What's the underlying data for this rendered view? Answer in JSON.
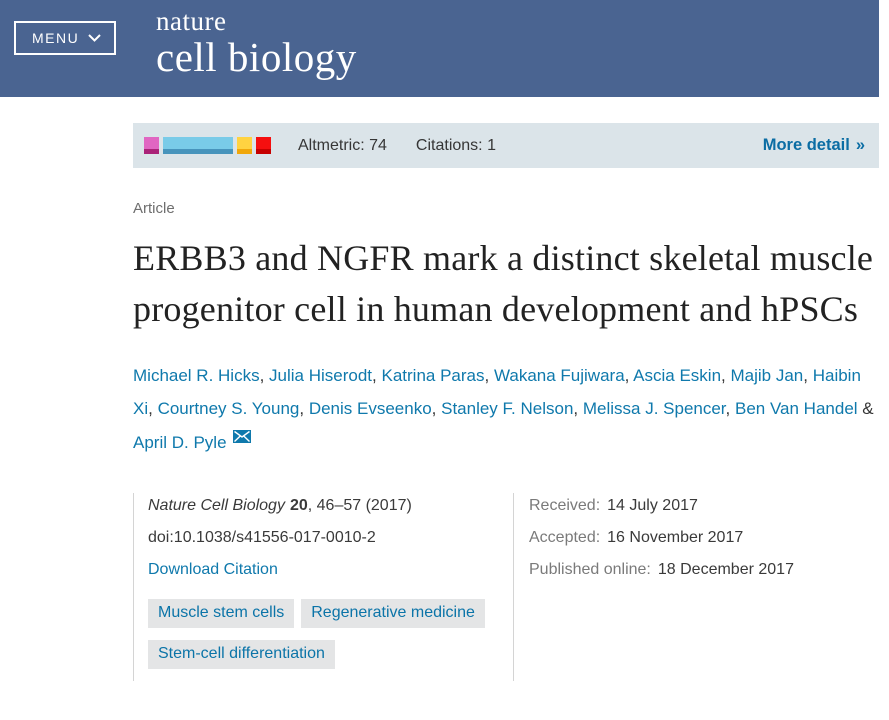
{
  "masthead": {
    "menu_label": "MENU",
    "journal_line1": "nature",
    "journal_line2": "cell biology"
  },
  "altmetric": {
    "score_label": "Altmetric: 74",
    "citations_label": "Citations: 1",
    "more_detail_label": "More detail",
    "blocks": [
      {
        "name": "altmetric-block-magenta",
        "color": "#e066c2",
        "shade": "#aa2379",
        "width": 15
      },
      {
        "name": "altmetric-block-blue",
        "color": "#79cbe8",
        "shade": "#4794bc",
        "width": 70
      },
      {
        "name": "altmetric-block-yellow",
        "color": "#ffd341",
        "shade": "#f0a70a",
        "width": 15
      },
      {
        "name": "altmetric-block-red",
        "color": "#f50f0f",
        "shade": "#c60000",
        "width": 15
      }
    ]
  },
  "icons": {
    "double_chevron_right": "»"
  },
  "article": {
    "kicker": "Article",
    "title": "ERBB3 and NGFR mark a distinct skeletal muscle progenitor cell in human development and hPSCs",
    "authors": [
      "Michael R. Hicks",
      "Julia Hiserodt",
      "Katrina Paras",
      "Wakana Fujiwara",
      "Ascia Eskin",
      "Majib Jan",
      "Haibin Xi",
      "Courtney S. Young",
      "Denis Evseenko",
      "Stanley F. Nelson",
      "Melissa J. Spencer",
      "Ben Van Handel",
      "April D. Pyle"
    ],
    "separator": ", ",
    "last_separator": " & "
  },
  "citation": {
    "journal": "Nature Cell Biology",
    "volume": "20",
    "pages": ", 46–57 (2017)",
    "doi": "doi:10.1038/s41556-017-0010-2",
    "download_label": "Download Citation",
    "subjects": [
      "Muscle stem cells",
      "Regenerative medicine",
      "Stem-cell differentiation"
    ]
  },
  "article_history": {
    "items": [
      {
        "label": "Received:",
        "value": "14 July 2017"
      },
      {
        "label": "Accepted:",
        "value": "16 November 2017"
      },
      {
        "label": "Published online:",
        "value": "18 December 2017"
      }
    ]
  },
  "colors": {
    "masthead_bg": "#4a6491",
    "altmetric_bg": "#dbe4e9",
    "link_blue": "#0f79ac",
    "more_detail_blue": "#0b6da4",
    "tag_bg": "#e4e5e6"
  }
}
